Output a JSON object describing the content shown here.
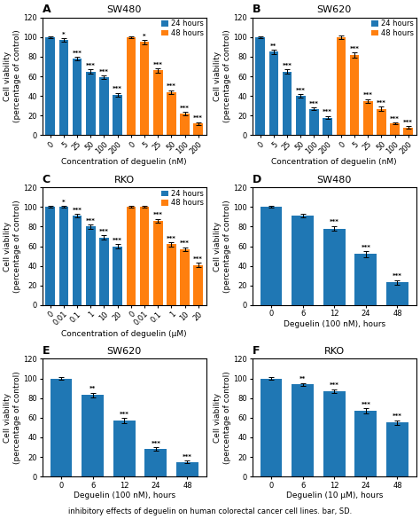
{
  "chart_data": [
    {
      "type": "bar",
      "panel_label": "A",
      "title": "SW480",
      "xlabel": "Concentration of deguelin (nM)",
      "ylabel": "Cell viability\n(percentage of control)",
      "categories": [
        "0",
        "5",
        "25",
        "50",
        "100",
        "200",
        "0",
        "5",
        "25",
        "50",
        "100",
        "200"
      ],
      "series": [
        {
          "name": "24 hours",
          "values": [
            100,
            97,
            78,
            65,
            59,
            41,
            null,
            null,
            null,
            null,
            null,
            null
          ],
          "errors": [
            1.0,
            2.0,
            2.0,
            2.0,
            2.0,
            2.0,
            null,
            null,
            null,
            null,
            null,
            null
          ],
          "stars": [
            null,
            "*",
            "***",
            "***",
            "***",
            "***",
            null,
            null,
            null,
            null,
            null,
            null
          ]
        },
        {
          "name": "48 hours",
          "values": [
            null,
            null,
            null,
            null,
            null,
            null,
            100,
            95,
            66,
            44,
            22,
            12
          ],
          "errors": [
            null,
            null,
            null,
            null,
            null,
            null,
            1.0,
            2.0,
            2.0,
            2.0,
            1.5,
            1.5
          ],
          "stars": [
            null,
            null,
            null,
            null,
            null,
            null,
            null,
            "*",
            "***",
            "***",
            "***",
            "***"
          ]
        }
      ],
      "ylim": [
        0,
        120
      ],
      "yticks": [
        0,
        20,
        40,
        60,
        80,
        100,
        120
      ],
      "legend": "upper right"
    },
    {
      "type": "bar",
      "panel_label": "B",
      "title": "SW620",
      "xlabel": "Concentration of deguelin (nM)",
      "ylabel": "Cell viability\n(percentage of control)",
      "categories": [
        "0",
        "5",
        "25",
        "50",
        "100",
        "200",
        "0",
        "5",
        "25",
        "50",
        "100",
        "200"
      ],
      "series": [
        {
          "name": "24 hours",
          "values": [
            100,
            85,
            65,
            40,
            27,
            18,
            null,
            null,
            null,
            null,
            null,
            null
          ],
          "errors": [
            1.0,
            2.0,
            2.0,
            2.0,
            1.5,
            1.5,
            null,
            null,
            null,
            null,
            null,
            null
          ],
          "stars": [
            null,
            "**",
            "***",
            "***",
            "***",
            "***",
            null,
            null,
            null,
            null,
            null,
            null
          ]
        },
        {
          "name": "48 hours",
          "values": [
            null,
            null,
            null,
            null,
            null,
            null,
            100,
            82,
            35,
            27,
            12,
            8
          ],
          "errors": [
            null,
            null,
            null,
            null,
            null,
            null,
            2.0,
            2.5,
            2.0,
            2.0,
            1.0,
            1.0
          ],
          "stars": [
            null,
            null,
            null,
            null,
            null,
            null,
            null,
            "***",
            "***",
            "***",
            "***",
            "***"
          ]
        }
      ],
      "ylim": [
        0,
        120
      ],
      "yticks": [
        0,
        20,
        40,
        60,
        80,
        100,
        120
      ],
      "legend": "upper right"
    },
    {
      "type": "bar",
      "panel_label": "C",
      "title": "RKO",
      "xlabel": "Concentration of deguelin (μM)",
      "ylabel": "Cell viability\n(percentage of control)",
      "categories": [
        "0",
        "0.01",
        "0.1",
        "1",
        "10",
        "20",
        "0",
        "0.01",
        "0.1",
        "1",
        "10",
        "20"
      ],
      "series": [
        {
          "name": "24 hours",
          "values": [
            100,
            100,
            91,
            80,
            69,
            60,
            null,
            null,
            null,
            null,
            null,
            null
          ],
          "errors": [
            1.0,
            1.0,
            2.0,
            2.0,
            2.0,
            2.0,
            null,
            null,
            null,
            null,
            null,
            null
          ],
          "stars": [
            null,
            "*",
            "***",
            "***",
            "***",
            "***",
            null,
            null,
            null,
            null,
            null,
            null
          ]
        },
        {
          "name": "48 hours",
          "values": [
            null,
            null,
            null,
            null,
            null,
            null,
            100,
            100,
            86,
            62,
            57,
            41
          ],
          "errors": [
            null,
            null,
            null,
            null,
            null,
            null,
            1.0,
            1.0,
            2.0,
            2.0,
            2.0,
            2.0
          ],
          "stars": [
            null,
            null,
            null,
            null,
            null,
            null,
            null,
            null,
            "***",
            "***",
            "***",
            "***"
          ]
        }
      ],
      "ylim": [
        0,
        120
      ],
      "yticks": [
        0,
        20,
        40,
        60,
        80,
        100,
        120
      ],
      "legend": "upper right"
    },
    {
      "type": "bar",
      "panel_label": "D",
      "title": "SW480",
      "xlabel": "Deguelin (100 nM), hours",
      "ylabel": "Cell viability\n(percentage of control)",
      "categories": [
        "0",
        "6",
        "12",
        "24",
        "48"
      ],
      "values": [
        100,
        91,
        78,
        52,
        23
      ],
      "errors": [
        1.0,
        2.0,
        2.5,
        3.0,
        2.5
      ],
      "stars": [
        null,
        null,
        "***",
        "***",
        "***"
      ],
      "ylim": [
        0,
        120
      ],
      "yticks": [
        0,
        20,
        40,
        60,
        80,
        100,
        120
      ]
    },
    {
      "type": "bar",
      "panel_label": "E",
      "title": "SW620",
      "xlabel": "Deguelin (100 nM), hours",
      "ylabel": "Cell viability\n(percentage of control)",
      "categories": [
        "0",
        "6",
        "12",
        "24",
        "48"
      ],
      "values": [
        100,
        83,
        57,
        28,
        15
      ],
      "errors": [
        1.0,
        2.5,
        2.5,
        2.0,
        1.5
      ],
      "stars": [
        null,
        "**",
        "***",
        "***",
        "***"
      ],
      "ylim": [
        0,
        120
      ],
      "yticks": [
        0,
        20,
        40,
        60,
        80,
        100,
        120
      ]
    },
    {
      "type": "bar",
      "panel_label": "F",
      "title": "RKO",
      "xlabel": "Deguelin (10 μM), hours",
      "ylabel": "Cell viability\n(percentage of control)",
      "categories": [
        "0",
        "6",
        "12",
        "24",
        "48"
      ],
      "values": [
        100,
        94,
        87,
        67,
        55
      ],
      "errors": [
        1.0,
        1.5,
        2.0,
        2.5,
        2.5
      ],
      "stars": [
        null,
        "**",
        "***",
        "***",
        "***"
      ],
      "ylim": [
        0,
        120
      ],
      "yticks": [
        0,
        20,
        40,
        60,
        80,
        100,
        120
      ]
    }
  ],
  "caption": "inhibitory effects of deguelin on human colorectal cancer cell lines. bar, SD."
}
